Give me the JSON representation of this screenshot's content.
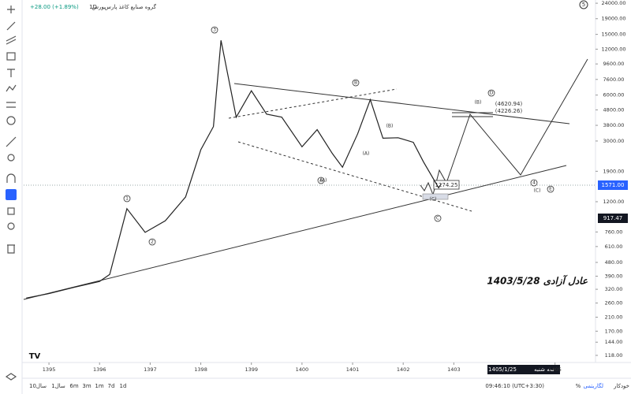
{
  "ui": {
    "header": {
      "exchange": "بورس",
      "interval": "1D",
      "symbol": "گروه صنایع کاغذ پارس",
      "change": "+28.00 (+1.89%)"
    },
    "price_labels": {
      "last": "1571.00",
      "marker": "917.47"
    },
    "cursor_date": {
      "date": "1405/1/25",
      "weekday": "سه شنبه"
    },
    "corner": "5",
    "range_buttons": [
      "10سال",
      "1سال",
      "6m",
      "3m",
      "1m",
      "7d",
      "1d"
    ],
    "status": {
      "time": "09:46:10 (UTC+3:30)",
      "percent": "%",
      "log": "لگاریتمی",
      "auto": "خودکار"
    }
  },
  "annotations": {
    "waves": [
      "3",
      "1",
      "2",
      "A",
      "(A)",
      "B",
      "(B)",
      "(A)",
      "(C)",
      "C",
      "(B)",
      "D",
      "4",
      "(C)",
      "E"
    ],
    "target_price": "1274.25",
    "levels": [
      "(4620.94)",
      "(4226.26)"
    ],
    "caption": "عادل آزادی 1403/5/28"
  },
  "chart_data": {
    "type": "line",
    "color": "#222222",
    "log_scale": true,
    "grid": false,
    "x": [
      1394.55,
      1395,
      1395.5,
      1396,
      1396.2,
      1396.54,
      1396.9,
      1397.3,
      1397.7,
      1398,
      1398.25,
      1398.4,
      1398.7,
      1399,
      1399.3,
      1399.6,
      1400,
      1400.3,
      1400.6,
      1400.8,
      1401.1,
      1401.35,
      1401.6,
      1401.9,
      1402.2,
      1402.4,
      1402.7,
      1402.75
    ],
    "values": [
      280,
      300,
      330,
      360,
      400,
      1080,
      755,
      900,
      1290,
      2630,
      3730,
      13700,
      4300,
      6400,
      4500,
      4300,
      2750,
      3560,
      2480,
      2020,
      3350,
      5600,
      3130,
      3150,
      2940,
      2190,
      1480,
      1571
    ],
    "xlim": [
      1394.5,
      1405.8
    ],
    "xticks": [
      1395,
      1396,
      1397,
      1398,
      1399,
      1400,
      1401,
      1402,
      1403,
      1405
    ],
    "ylim": [
      106,
      25200
    ],
    "yticks": [
      {
        "value": 24000,
        "label": "24000.00"
      },
      {
        "value": 19000,
        "label": "19000.00"
      },
      {
        "value": 15000,
        "label": "15000.00"
      },
      {
        "value": 12000,
        "label": "12000.00"
      },
      {
        "value": 9600,
        "label": "9600.00"
      },
      {
        "value": 7600,
        "label": "7600.00"
      },
      {
        "value": 6000,
        "label": "6000.00"
      },
      {
        "value": 4800,
        "label": "4800.00"
      },
      {
        "value": 3800,
        "label": "3800.00"
      },
      {
        "value": 3000,
        "label": "3000.00"
      },
      {
        "value": 1900,
        "label": "1900.00"
      },
      {
        "value": 1200,
        "label": "1200.00"
      },
      {
        "value": 760,
        "label": "760.00"
      },
      {
        "value": 610,
        "label": "610.00"
      },
      {
        "value": 480,
        "label": "480.00"
      },
      {
        "value": 390,
        "label": "390.00"
      },
      {
        "value": 320,
        "label": "320.00"
      },
      {
        "value": 260,
        "label": "260.00"
      },
      {
        "value": 210,
        "label": "210.00"
      },
      {
        "value": 170,
        "label": "170.00"
      },
      {
        "value": 144,
        "label": "144.00"
      },
      {
        "value": 118,
        "label": "118.00"
      }
    ]
  }
}
